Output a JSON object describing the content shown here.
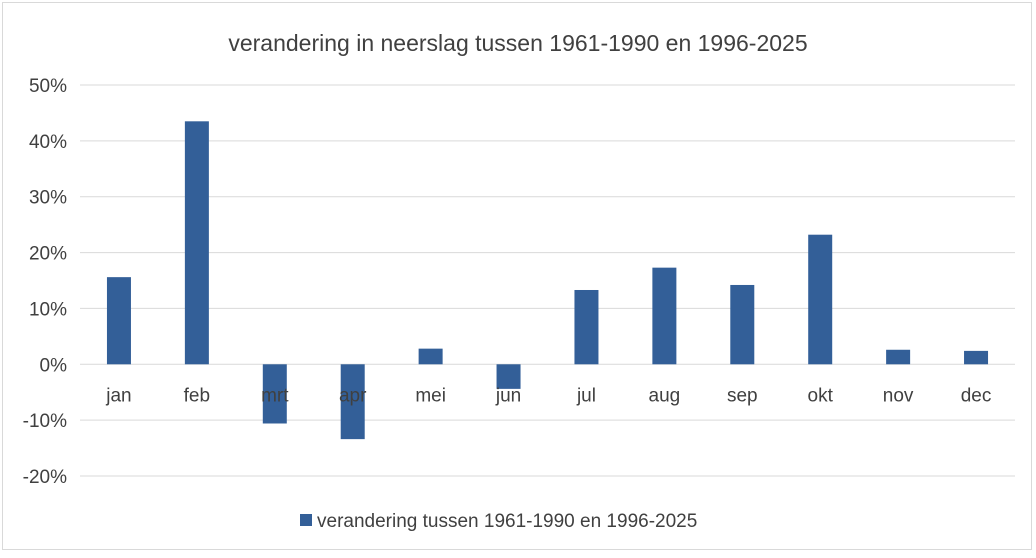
{
  "chart_data": {
    "type": "bar",
    "title": "verandering in neerslag tussen 1961-1990 en 1996-2025",
    "xlabel": "",
    "ylabel": "",
    "categories": [
      "jan",
      "feb",
      "mrt",
      "apr",
      "mei",
      "jun",
      "jul",
      "aug",
      "sep",
      "okt",
      "nov",
      "dec"
    ],
    "series": [
      {
        "name": "verandering tussen 1961-1990 en 1996-2025",
        "color": "#335f98",
        "values": [
          0.156,
          0.435,
          -0.106,
          -0.134,
          0.028,
          -0.044,
          0.133,
          0.173,
          0.142,
          0.232,
          0.026,
          0.024
        ]
      }
    ],
    "ylim": [
      -0.2,
      0.5
    ],
    "yticks": [
      -0.2,
      -0.1,
      0,
      0.1,
      0.2,
      0.3,
      0.4,
      0.5
    ],
    "ytick_labels": [
      "-20%",
      "-10%",
      "0%",
      "10%",
      "20%",
      "30%",
      "40%",
      "50%"
    ],
    "grid": true,
    "legend_position": "bottom"
  }
}
